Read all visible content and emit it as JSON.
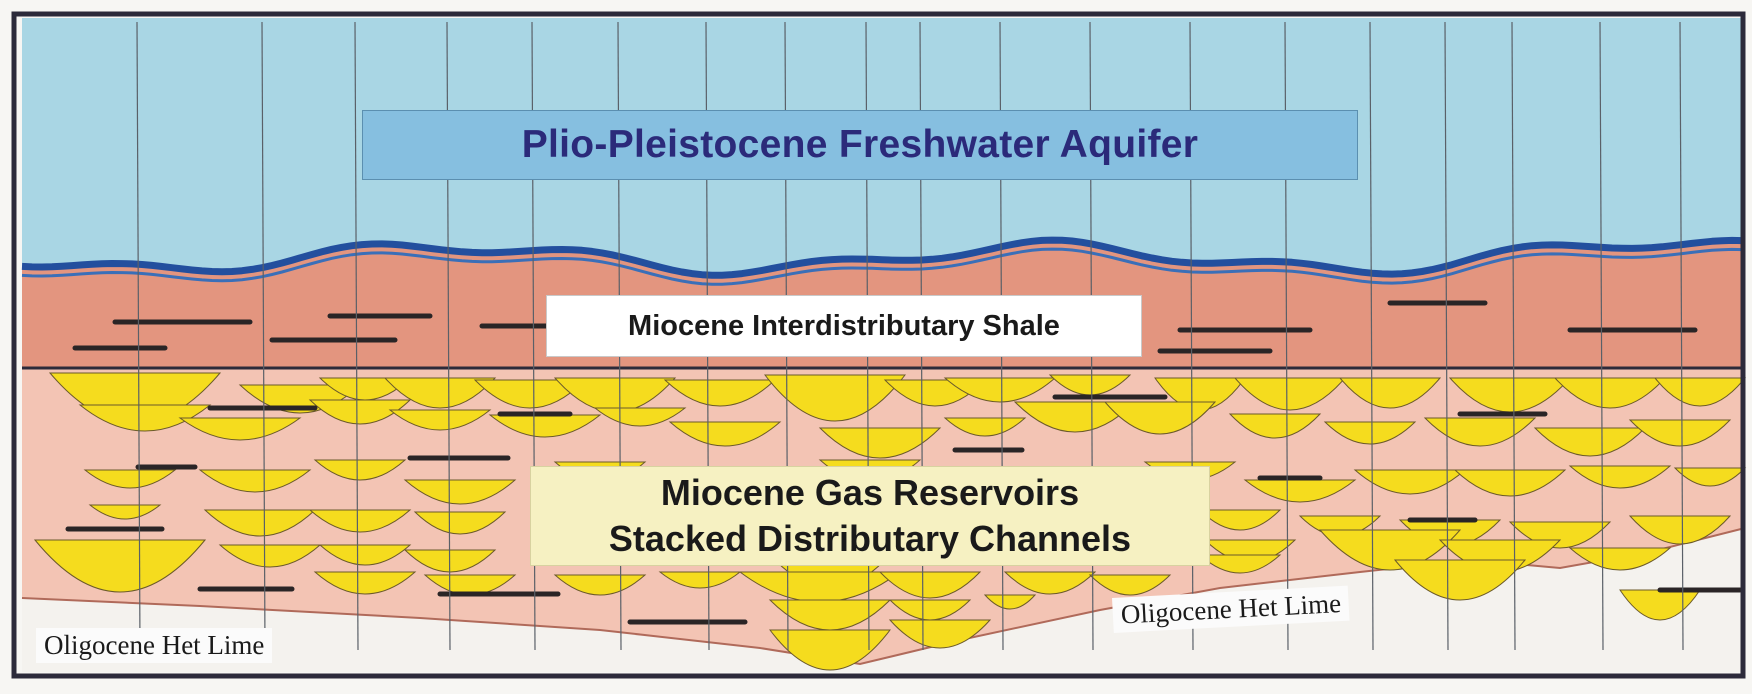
{
  "labels": {
    "aquifer": "Plio-Pleistocene Freshwater Aquifer",
    "shale": "Miocene Interdistributary Shale",
    "gas_line1": "Miocene Gas Reservoirs",
    "gas_line2": "Stacked Distributary Channels",
    "lime_left": "Oligocene Het Lime",
    "lime_right": "Oligocene Het Lime"
  },
  "colors": {
    "aquifer": "#a9d6e4",
    "aquifer_boundary": "#234f9e",
    "shale": "#e3957f",
    "reservoir_matrix": "#f3c4b4",
    "channel_fill": "#f5dc1e",
    "shale_streak": "#2a2526",
    "lime": "#f4f2ee",
    "frame": "#2c2a3a"
  }
}
